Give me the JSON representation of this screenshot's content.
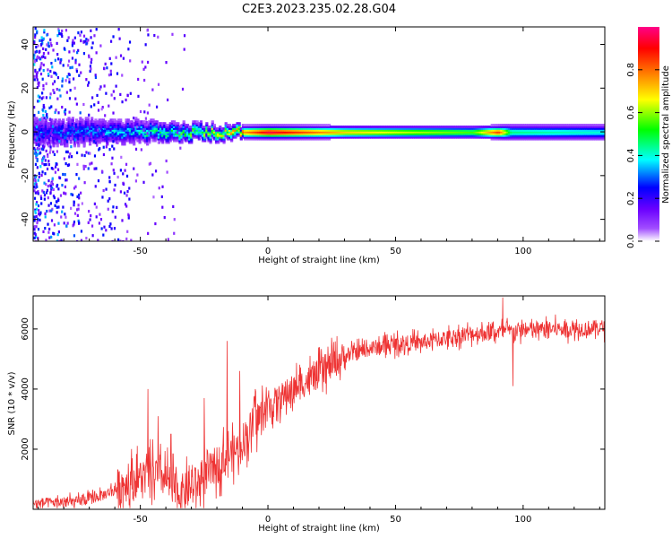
{
  "title": "C2E3.2023.235.02.28.G04",
  "chart_data": [
    {
      "type": "heatmap",
      "xlabel": "Height of straight line (km)",
      "ylabel": "Frequency (Hz)",
      "xlim": [
        -92,
        132
      ],
      "ylim": [
        -50,
        48
      ],
      "xticks": [
        -50,
        0,
        50,
        100
      ],
      "yticks": [
        -40,
        -20,
        0,
        20,
        40
      ],
      "grid": false,
      "colorbar": {
        "label": "Normalized spectral amplitude",
        "range": [
          0.0,
          1.0
        ],
        "ticks": [
          0.0,
          0.2,
          0.4,
          0.6,
          0.8
        ],
        "tick_labels": [
          "0.0",
          "0.2",
          "0.4",
          "0.6",
          "0.8"
        ],
        "colormap": "gist_rainbow_r",
        "colors": [
          "#ffffff",
          "#8a00ff",
          "#0000ff",
          "#00ffff",
          "#00ff00",
          "#ffff00",
          "#ff8000",
          "#ff0000",
          "#ff0080"
        ]
      },
      "ridge": {
        "center_hz": 0,
        "profile": [
          {
            "x": -92,
            "halfwidth": 6,
            "amp": 0.25
          },
          {
            "x": -60,
            "halfwidth": 5,
            "amp": 0.35
          },
          {
            "x": -40,
            "halfwidth": 4,
            "amp": 0.45
          },
          {
            "x": -20,
            "halfwidth": 3,
            "amp": 0.6
          },
          {
            "x": -10,
            "halfwidth": 2.5,
            "amp": 0.75
          },
          {
            "x": 0,
            "halfwidth": 2.5,
            "amp": 0.95
          },
          {
            "x": 30,
            "halfwidth": 2.5,
            "amp": 0.7
          },
          {
            "x": 80,
            "halfwidth": 2.5,
            "amp": 0.55
          },
          {
            "x": 90,
            "halfwidth": 2.5,
            "amp": 0.85
          },
          {
            "x": 95,
            "halfwidth": 3,
            "amp": 0.45
          },
          {
            "x": 132,
            "halfwidth": 3,
            "amp": 0.4
          }
        ],
        "scatter_region_x": [
          -92,
          -30
        ]
      }
    },
    {
      "type": "line",
      "xlabel": "Height of straight line (km)",
      "ylabel": "SNR (10 * v/v)",
      "xlim": [
        -92,
        132
      ],
      "ylim": [
        0,
        7100
      ],
      "xticks": [
        -50,
        0,
        50,
        100
      ],
      "yticks": [
        2000,
        4000,
        6000
      ],
      "grid": false,
      "series": [
        {
          "color": "#ee3333",
          "trend": [
            {
              "x": -92,
              "y": 200
            },
            {
              "x": -75,
              "y": 250
            },
            {
              "x": -65,
              "y": 450
            },
            {
              "x": -55,
              "y": 900
            },
            {
              "x": -45,
              "y": 1200
            },
            {
              "x": -40,
              "y": 1000
            },
            {
              "x": -35,
              "y": 500
            },
            {
              "x": -28,
              "y": 800
            },
            {
              "x": -20,
              "y": 1500
            },
            {
              "x": -12,
              "y": 2000
            },
            {
              "x": -5,
              "y": 2900
            },
            {
              "x": 0,
              "y": 3400
            },
            {
              "x": 10,
              "y": 4000
            },
            {
              "x": 20,
              "y": 4500
            },
            {
              "x": 30,
              "y": 5100
            },
            {
              "x": 40,
              "y": 5350
            },
            {
              "x": 50,
              "y": 5500
            },
            {
              "x": 60,
              "y": 5550
            },
            {
              "x": 70,
              "y": 5700
            },
            {
              "x": 80,
              "y": 5850
            },
            {
              "x": 90,
              "y": 5900
            },
            {
              "x": 100,
              "y": 5950
            },
            {
              "x": 110,
              "y": 6000
            },
            {
              "x": 120,
              "y": 6000
            },
            {
              "x": 132,
              "y": 6050
            }
          ],
          "spikes": [
            {
              "x": -47,
              "y": 4000
            },
            {
              "x": -43,
              "y": 3100
            },
            {
              "x": -38,
              "y": 2500
            },
            {
              "x": -25,
              "y": 3700
            },
            {
              "x": -16,
              "y": 5600
            },
            {
              "x": -11,
              "y": 4600
            },
            {
              "x": -5,
              "y": 4000
            },
            {
              "x": 92,
              "y": 7050
            },
            {
              "x": 96,
              "y": 4100
            }
          ]
        }
      ]
    }
  ]
}
